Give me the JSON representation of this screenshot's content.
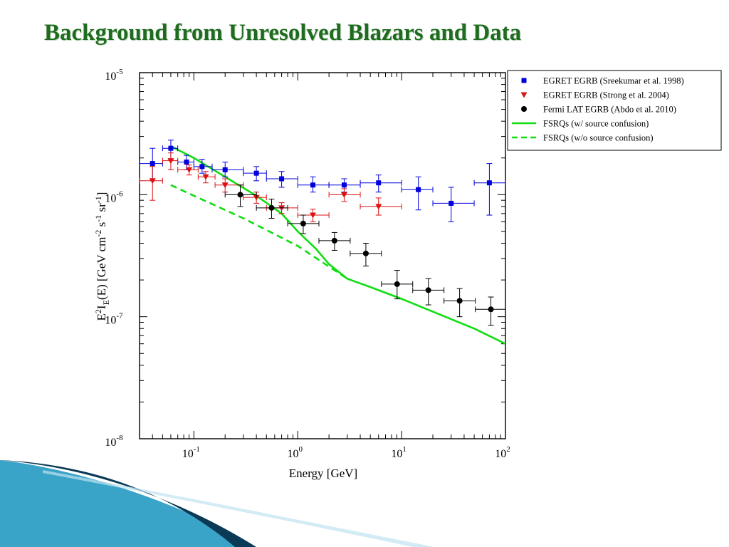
{
  "slide": {
    "title": "Background from Unresolved Blazars and Data"
  },
  "colors": {
    "title": "#1f6b1f",
    "blue": "#0000dd",
    "red": "#dd1111",
    "black": "#000000",
    "green": "#11dd11",
    "accent_dark": "#0a3a55",
    "accent_light": "#3aa3c8"
  },
  "chart_data": {
    "type": "scatter",
    "title": "",
    "xlabel": "Energy [GeV]",
    "ylabel": "E2IE(E) [GeV cm-2 s-1 sr-1]",
    "ylabel_parts": {
      "base": "E",
      "sup1": "2",
      "main": "I",
      "sub": "E",
      "mid": "(E) [GeV cm",
      "sup2": "-2",
      "s": " s",
      "sup3": "-1",
      "sr": " sr",
      "sup4": "-1",
      "end": "]"
    },
    "xscale": "log",
    "yscale": "log",
    "xlim": [
      0.03,
      100
    ],
    "ylim": [
      1e-08,
      1e-05
    ],
    "xticks": [
      {
        "value": 0.1,
        "base": "10",
        "exp": "-1"
      },
      {
        "value": 1,
        "base": "10",
        "exp": "0"
      },
      {
        "value": 10,
        "base": "10",
        "exp": "1"
      },
      {
        "value": 100,
        "base": "10",
        "exp": "2"
      }
    ],
    "yticks": [
      {
        "value": 1e-08,
        "base": "10",
        "exp": "-8"
      },
      {
        "value": 1e-07,
        "base": "10",
        "exp": "-7"
      },
      {
        "value": 1e-06,
        "base": "10",
        "exp": "-6"
      },
      {
        "value": 1e-05,
        "base": "10",
        "exp": "-5"
      }
    ],
    "grid": false,
    "legend_position": "top-right",
    "series": [
      {
        "name": "EGRET EGRB (Sreekumar et al. 1998)",
        "kind": "points",
        "marker": "square",
        "color": "#0000dd",
        "points": [
          {
            "x": 0.04,
            "y": 1.8e-06,
            "xlo": 0.03,
            "xhi": 0.05,
            "ylo": 1.3e-06,
            "yhi": 2.4e-06
          },
          {
            "x": 0.06,
            "y": 2.4e-06,
            "xlo": 0.05,
            "xhi": 0.07,
            "ylo": 1.95e-06,
            "yhi": 2.8e-06
          },
          {
            "x": 0.085,
            "y": 1.85e-06,
            "xlo": 0.07,
            "xhi": 0.1,
            "ylo": 1.6e-06,
            "yhi": 2.1e-06
          },
          {
            "x": 0.12,
            "y": 1.7e-06,
            "xlo": 0.1,
            "xhi": 0.15,
            "ylo": 1.5e-06,
            "yhi": 1.95e-06
          },
          {
            "x": 0.2,
            "y": 1.6e-06,
            "xlo": 0.15,
            "xhi": 0.3,
            "ylo": 1.4e-06,
            "yhi": 1.85e-06
          },
          {
            "x": 0.4,
            "y": 1.5e-06,
            "xlo": 0.3,
            "xhi": 0.5,
            "ylo": 1.3e-06,
            "yhi": 1.7e-06
          },
          {
            "x": 0.7,
            "y": 1.35e-06,
            "xlo": 0.5,
            "xhi": 1.0,
            "ylo": 1.15e-06,
            "yhi": 1.55e-06
          },
          {
            "x": 1.4,
            "y": 1.2e-06,
            "xlo": 1.0,
            "xhi": 2.0,
            "ylo": 1.05e-06,
            "yhi": 1.4e-06
          },
          {
            "x": 2.8,
            "y": 1.2e-06,
            "xlo": 2.0,
            "xhi": 4.0,
            "ylo": 1.05e-06,
            "yhi": 1.35e-06
          },
          {
            "x": 6.0,
            "y": 1.25e-06,
            "xlo": 4.0,
            "xhi": 10.0,
            "ylo": 1.05e-06,
            "yhi": 1.45e-06
          },
          {
            "x": 14.5,
            "y": 1.1e-06,
            "xlo": 10.0,
            "xhi": 20.0,
            "ylo": 7.5e-07,
            "yhi": 1.4e-06
          },
          {
            "x": 30.0,
            "y": 8.5e-07,
            "xlo": 20.0,
            "xhi": 50.0,
            "ylo": 6e-07,
            "yhi": 1.15e-06
          },
          {
            "x": 70.0,
            "y": 1.25e-06,
            "xlo": 50.0,
            "xhi": 100.0,
            "ylo": 6.8e-07,
            "yhi": 1.8e-06
          }
        ]
      },
      {
        "name": "EGRET EGRB (Strong et al. 2004)",
        "kind": "points",
        "marker": "triangle",
        "color": "#dd1111",
        "points": [
          {
            "x": 0.04,
            "y": 1.3e-06,
            "xlo": 0.03,
            "xhi": 0.05,
            "ylo": 9e-07,
            "yhi": 1.7e-06
          },
          {
            "x": 0.06,
            "y": 1.9e-06,
            "xlo": 0.05,
            "xhi": 0.07,
            "ylo": 1.6e-06,
            "yhi": 2.2e-06
          },
          {
            "x": 0.09,
            "y": 1.6e-06,
            "xlo": 0.07,
            "xhi": 0.11,
            "ylo": 1.45e-06,
            "yhi": 1.75e-06
          },
          {
            "x": 0.13,
            "y": 1.4e-06,
            "xlo": 0.11,
            "xhi": 0.16,
            "ylo": 1.25e-06,
            "yhi": 1.55e-06
          },
          {
            "x": 0.2,
            "y": 1.2e-06,
            "xlo": 0.16,
            "xhi": 0.3,
            "ylo": 1.05e-06,
            "yhi": 1.35e-06
          },
          {
            "x": 0.4,
            "y": 9.5e-07,
            "xlo": 0.3,
            "xhi": 0.5,
            "ylo": 8.5e-07,
            "yhi": 1.05e-06
          },
          {
            "x": 0.7,
            "y": 7.8e-07,
            "xlo": 0.5,
            "xhi": 1.0,
            "ylo": 7e-07,
            "yhi": 8.6e-07
          },
          {
            "x": 1.4,
            "y": 6.8e-07,
            "xlo": 1.0,
            "xhi": 2.0,
            "ylo": 6e-07,
            "yhi": 7.6e-07
          },
          {
            "x": 2.8,
            "y": 1e-06,
            "xlo": 2.0,
            "xhi": 4.0,
            "ylo": 8.8e-07,
            "yhi": 1.12e-06
          },
          {
            "x": 6.0,
            "y": 8e-07,
            "xlo": 4.0,
            "xhi": 10.0,
            "ylo": 6.8e-07,
            "yhi": 9.4e-07
          }
        ]
      },
      {
        "name": "Fermi LAT EGRB (Abdo et al. 2010)",
        "kind": "points",
        "marker": "circle",
        "color": "#000000",
        "points": [
          {
            "x": 0.28,
            "y": 1e-06,
            "xlo": 0.2,
            "xhi": 0.4,
            "ylo": 8e-07,
            "yhi": 1.2e-06
          },
          {
            "x": 0.56,
            "y": 7.8e-07,
            "xlo": 0.4,
            "xhi": 0.8,
            "ylo": 6.4e-07,
            "yhi": 9.2e-07
          },
          {
            "x": 1.13,
            "y": 5.8e-07,
            "xlo": 0.8,
            "xhi": 1.6,
            "ylo": 4.8e-07,
            "yhi": 6.8e-07
          },
          {
            "x": 2.26,
            "y": 4.2e-07,
            "xlo": 1.6,
            "xhi": 3.2,
            "ylo": 3.5e-07,
            "yhi": 4.9e-07
          },
          {
            "x": 4.53,
            "y": 3.3e-07,
            "xlo": 3.2,
            "xhi": 6.4,
            "ylo": 2.6e-07,
            "yhi": 4e-07
          },
          {
            "x": 9.05,
            "y": 1.85e-07,
            "xlo": 6.4,
            "xhi": 12.8,
            "ylo": 1.4e-07,
            "yhi": 2.4e-07
          },
          {
            "x": 18.1,
            "y": 1.65e-07,
            "xlo": 12.8,
            "xhi": 25.6,
            "ylo": 1.25e-07,
            "yhi": 2.05e-07
          },
          {
            "x": 36.2,
            "y": 1.35e-07,
            "xlo": 25.6,
            "xhi": 51.2,
            "ylo": 1e-07,
            "yhi": 1.7e-07
          },
          {
            "x": 72.4,
            "y": 1.15e-07,
            "xlo": 51.2,
            "xhi": 102.4,
            "ylo": 8.5e-08,
            "yhi": 1.45e-07
          }
        ]
      },
      {
        "name": "FSRQs (w/ source confusion)",
        "kind": "line",
        "style": "solid",
        "color": "#11dd11",
        "x": [
          0.06,
          0.1,
          0.2,
          0.4,
          0.7,
          1.0,
          1.5,
          2.0,
          3.0,
          5.0,
          10.0,
          20.0,
          50.0,
          100.0
        ],
        "y": [
          2.5e-06,
          2e-06,
          1.4e-06,
          9.8e-07,
          7e-07,
          5e-07,
          3.6e-07,
          2.7e-07,
          2.05e-07,
          1.75e-07,
          1.4e-07,
          1.1e-07,
          8e-08,
          6e-08
        ]
      },
      {
        "name": "FSRQs (w/o source confusion)",
        "kind": "line",
        "style": "dashed",
        "color": "#11dd11",
        "x": [
          0.06,
          0.1,
          0.3,
          1.0,
          3.0
        ],
        "y": [
          1.2e-06,
          9.8e-07,
          6.4e-07,
          3.8e-07,
          2.05e-07
        ]
      }
    ]
  }
}
